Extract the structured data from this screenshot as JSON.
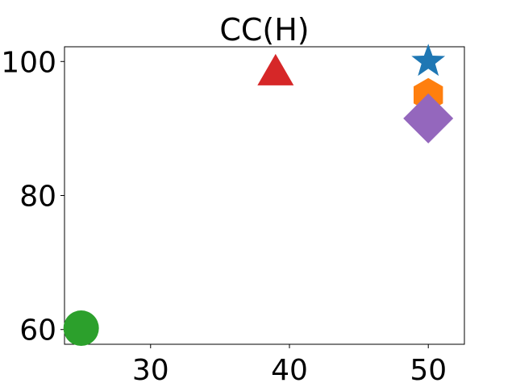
{
  "chart_data": {
    "type": "scatter",
    "title": "CC(H)",
    "xlabel": "",
    "ylabel": "",
    "xlim": [
      23.8,
      52.6
    ],
    "ylim": [
      57.8,
      102.2
    ],
    "xticks": [
      30,
      40,
      50
    ],
    "yticks": [
      60,
      80,
      100
    ],
    "grid": false,
    "points": [
      {
        "x": 50,
        "y": 100,
        "marker": "star",
        "color": "#1f77b4"
      },
      {
        "x": 50,
        "y": 95,
        "marker": "hexagon",
        "color": "#ff7f0e"
      },
      {
        "x": 25,
        "y": 60.2,
        "marker": "circle",
        "color": "#2ca02c"
      },
      {
        "x": 39,
        "y": 98,
        "marker": "triangle",
        "color": "#d62728"
      },
      {
        "x": 50,
        "y": 91.5,
        "marker": "diamond",
        "color": "#9467bd"
      }
    ]
  }
}
